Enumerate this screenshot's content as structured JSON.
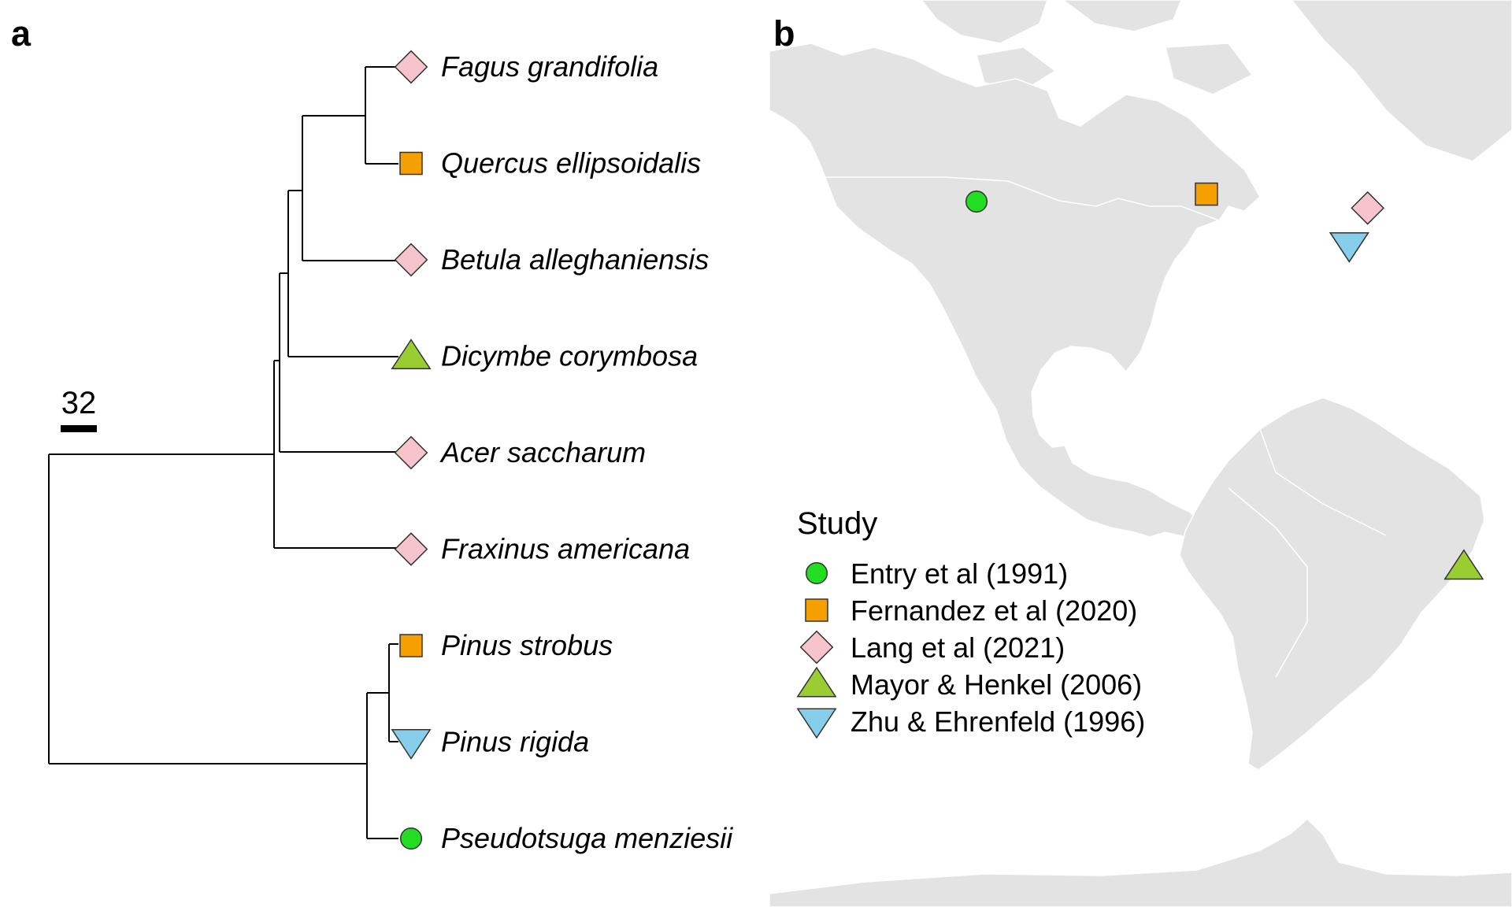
{
  "panels": {
    "a": "a",
    "b": "b"
  },
  "tree": {
    "scale_bar_label": "32",
    "tips": [
      {
        "name": "Fagus grandifolia",
        "study": "lang"
      },
      {
        "name": "Quercus ellipsoidalis",
        "study": "fernandez"
      },
      {
        "name": "Betula alleghaniensis",
        "study": "lang"
      },
      {
        "name": "Dicymbe corymbosa",
        "study": "mayor"
      },
      {
        "name": "Acer saccharum",
        "study": "lang"
      },
      {
        "name": "Fraxinus americana",
        "study": "lang"
      },
      {
        "name": "Pinus strobus",
        "study": "fernandez"
      },
      {
        "name": "Pinus rigida",
        "study": "zhu"
      },
      {
        "name": "Pseudotsuga menziesii",
        "study": "entry"
      }
    ]
  },
  "legend": {
    "title": "Study",
    "items": [
      {
        "key": "entry",
        "label": "Entry et al (1991)",
        "shape": "circle",
        "color": "#22dd22"
      },
      {
        "key": "fernandez",
        "label": "Fernandez et al (2020)",
        "shape": "square",
        "color": "#f5a000"
      },
      {
        "key": "lang",
        "label": "Lang et al (2021)",
        "shape": "diamond",
        "color": "#f7c3cc"
      },
      {
        "key": "mayor",
        "label": "Mayor & Henkel (2006)",
        "shape": "triangle-up",
        "color": "#9acd32"
      },
      {
        "key": "zhu",
        "label": "Zhu & Ehrenfeld (1996)",
        "shape": "triangle-down",
        "color": "#87ceeb"
      }
    ]
  },
  "map_points": [
    {
      "study": "entry",
      "lon": -123.3,
      "lat": 44.6
    },
    {
      "study": "fernandez",
      "lon": -93.2,
      "lat": 45.4
    },
    {
      "study": "lang",
      "lon": -72.1,
      "lat": 43.9
    },
    {
      "study": "zhu",
      "lon": -74.5,
      "lat": 39.9
    },
    {
      "study": "mayor",
      "lon": -59.5,
      "lat": 5.3
    }
  ]
}
